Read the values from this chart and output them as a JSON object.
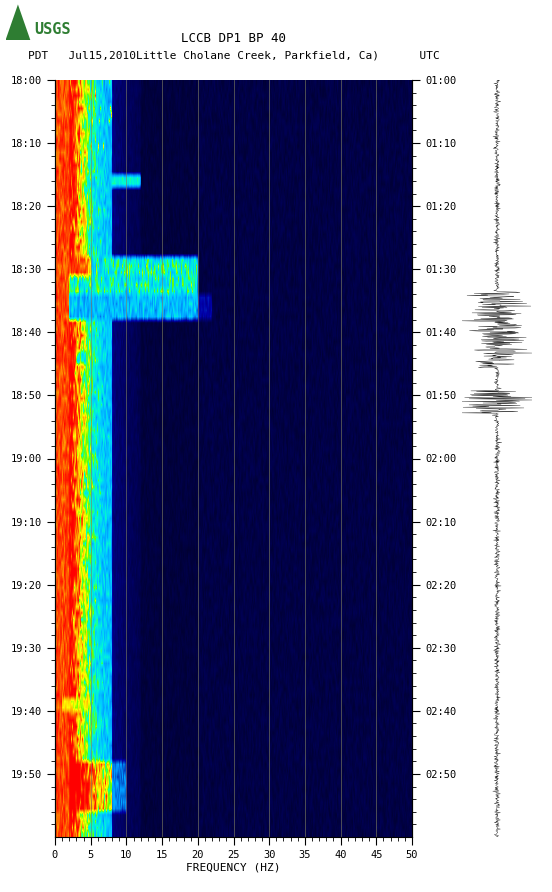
{
  "title_line1": "LCCB DP1 BP 40",
  "title_line2": "PDT   Jul15,2010Little Cholane Creek, Parkfield, Ca)      UTC",
  "left_yticks": [
    "18:00",
    "18:10",
    "18:20",
    "18:30",
    "18:40",
    "18:50",
    "19:00",
    "19:10",
    "19:20",
    "19:30",
    "19:40",
    "19:50"
  ],
  "right_yticks": [
    "01:00",
    "01:10",
    "01:20",
    "01:30",
    "01:40",
    "01:50",
    "02:00",
    "02:10",
    "02:20",
    "02:30",
    "02:40",
    "02:50"
  ],
  "xticks": [
    0,
    5,
    10,
    15,
    20,
    25,
    30,
    35,
    40,
    45,
    50
  ],
  "xlabel": "FREQUENCY (HZ)",
  "freq_min": 0,
  "freq_max": 50,
  "n_time": 120,
  "n_freq": 400,
  "background_color": "#ffffff",
  "usgs_green": "#2e7d32",
  "vgrid_freqs": [
    5,
    10,
    15,
    20,
    25,
    30,
    35,
    40,
    45
  ],
  "vgrid_color": "#808060",
  "tick_label_fontsize": 7.5,
  "xlabel_fontsize": 8
}
